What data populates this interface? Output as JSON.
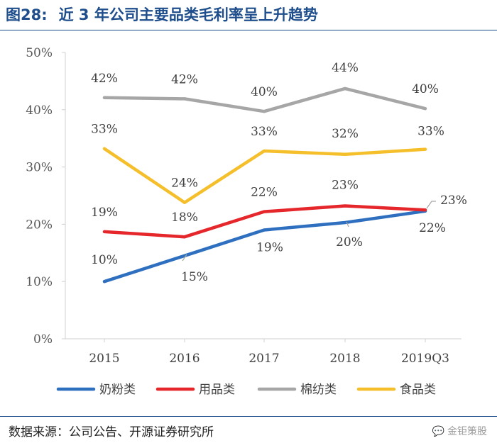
{
  "header": {
    "figure_label": "图28:",
    "title": "近 3 年公司主要品类毛利率呈上升趋势"
  },
  "chart_data": {
    "type": "line",
    "title": "近 3 年公司主要品类毛利率呈上升趋势",
    "xlabel": "",
    "ylabel": "",
    "categories": [
      "2015",
      "2016",
      "2017",
      "2018",
      "2019Q3"
    ],
    "ylim": [
      0,
      50
    ],
    "yticks": [
      0,
      10,
      20,
      30,
      40,
      50
    ],
    "ytick_labels": [
      "0%",
      "10%",
      "20%",
      "30%",
      "40%",
      "50%"
    ],
    "grid": false,
    "legend_position": "bottom",
    "series": [
      {
        "name": "奶粉类",
        "color": "#2e6fc0",
        "values": [
          10,
          14.5,
          19,
          20.3,
          22.3
        ],
        "labels": [
          "10%",
          "15%",
          "19%",
          "20%",
          "22%"
        ]
      },
      {
        "name": "用品类",
        "color": "#e5262b",
        "values": [
          18.7,
          17.8,
          22.2,
          23.2,
          22.5
        ],
        "labels": [
          "19%",
          "18%",
          "22%",
          "23%",
          "23%"
        ]
      },
      {
        "name": "棉纺类",
        "color": "#a6a6a6",
        "values": [
          42.1,
          41.9,
          39.7,
          43.7,
          40.2
        ],
        "labels": [
          "42%",
          "42%",
          "40%",
          "44%",
          "40%"
        ]
      },
      {
        "name": "食品类",
        "color": "#f5bf2b",
        "values": [
          33.2,
          23.8,
          32.8,
          32.2,
          33.1
        ],
        "labels": [
          "33%",
          "24%",
          "33%",
          "32%",
          "33%"
        ]
      }
    ]
  },
  "footer": {
    "source": "数据来源：公司公告、开源证券研究所",
    "watermark": "金钜策股",
    "watermark_icon": "wechat-icon"
  }
}
